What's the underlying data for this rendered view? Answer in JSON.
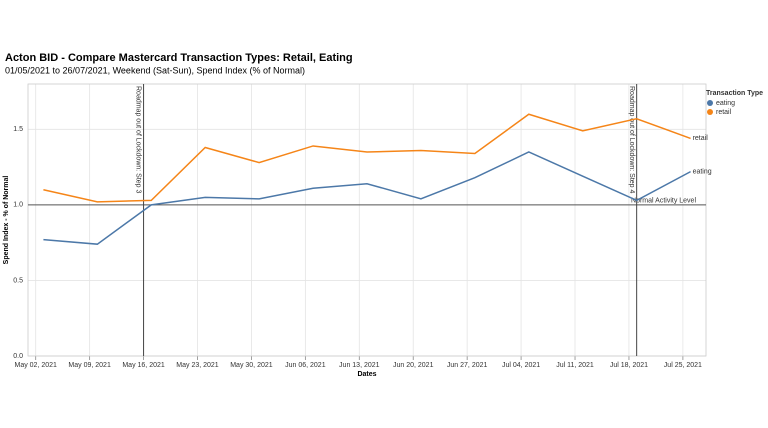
{
  "chart_data": {
    "type": "line",
    "title": "Acton BID - Compare Mastercard Transaction Types: Retail, Eating",
    "subtitle": "01/05/2021 to 26/07/2021, Weekend (Sat-Sun), Spend Index (% of Normal)",
    "x_label": "Dates",
    "y_label": "Spend Index - % of Normal",
    "legend_title": "Transaction Type",
    "legend": "top-right",
    "grid": true,
    "x": [
      "2021-05-03",
      "2021-05-10",
      "2021-05-17",
      "2021-05-24",
      "2021-05-31",
      "2021-06-07",
      "2021-06-14",
      "2021-06-21",
      "2021-06-28",
      "2021-07-05",
      "2021-07-12",
      "2021-07-19",
      "2021-07-26"
    ],
    "series": [
      {
        "name": "eating",
        "color": "#4c78a8",
        "values": [
          0.77,
          0.74,
          1.0,
          1.05,
          1.04,
          1.11,
          1.14,
          1.04,
          1.18,
          1.35,
          1.19,
          1.03,
          1.22
        ]
      },
      {
        "name": "retail",
        "color": "#f58518",
        "values": [
          1.1,
          1.02,
          1.03,
          1.38,
          1.28,
          1.39,
          1.35,
          1.36,
          1.34,
          1.6,
          1.49,
          1.57,
          1.44
        ]
      }
    ],
    "xlim": [
      "2021-05-01",
      "2021-07-28"
    ],
    "xticks": [
      {
        "value": "2021-05-02",
        "label": "May 02, 2021"
      },
      {
        "value": "2021-05-09",
        "label": "May 09, 2021"
      },
      {
        "value": "2021-05-16",
        "label": "May 16, 2021"
      },
      {
        "value": "2021-05-23",
        "label": "May 23, 2021"
      },
      {
        "value": "2021-05-30",
        "label": "May 30, 2021"
      },
      {
        "value": "2021-06-06",
        "label": "Jun 06, 2021"
      },
      {
        "value": "2021-06-13",
        "label": "Jun 13, 2021"
      },
      {
        "value": "2021-06-20",
        "label": "Jun 20, 2021"
      },
      {
        "value": "2021-06-27",
        "label": "Jun 27, 2021"
      },
      {
        "value": "2021-07-04",
        "label": "Jul 04, 2021"
      },
      {
        "value": "2021-07-11",
        "label": "Jul 11, 2021"
      },
      {
        "value": "2021-07-18",
        "label": "Jul 18, 2021"
      },
      {
        "value": "2021-07-25",
        "label": "Jul 25, 2021"
      }
    ],
    "ylim": [
      0,
      1.8
    ],
    "yticks": [
      {
        "value": 0,
        "label": "0.0"
      },
      0.5,
      {
        "value": 1,
        "label": "1.0"
      },
      1.5
    ],
    "rules": [
      {
        "x": "2021-05-16",
        "label": "Roadmap out of Lockdown: Step 3"
      },
      {
        "x": "2021-07-19",
        "label": "Roadmap out of Lockdown: Step 4"
      }
    ],
    "hline": {
      "y": 1,
      "label": "Normal Activity Level"
    }
  }
}
